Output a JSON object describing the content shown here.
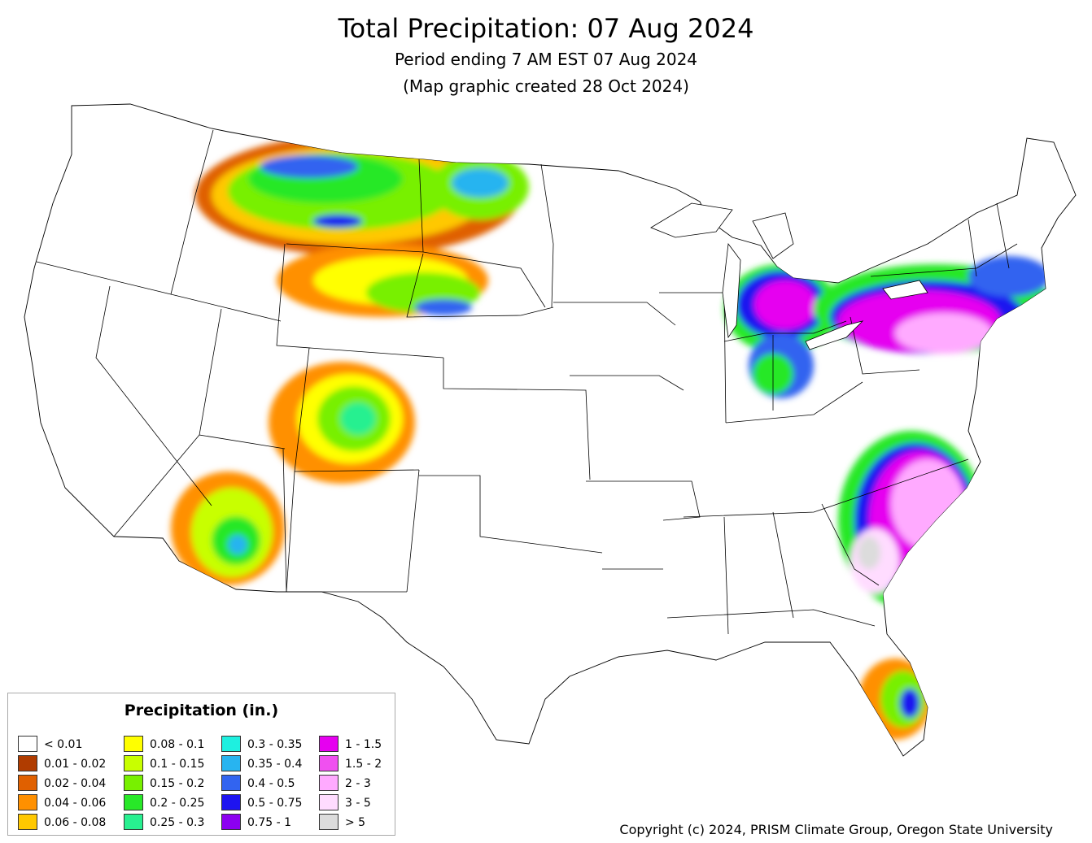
{
  "title": "Total Precipitation: 07 Aug 2024",
  "subtitle": "Period ending 7 AM EST 07 Aug 2024",
  "created": "(Map graphic created 28 Oct 2024)",
  "legend": {
    "title": "Precipitation (in.)",
    "items": [
      {
        "label": "< 0.01",
        "color": "#ffffff"
      },
      {
        "label": "0.01 - 0.02",
        "color": "#b03c00"
      },
      {
        "label": "0.02 - 0.04",
        "color": "#e06000"
      },
      {
        "label": "0.04 - 0.06",
        "color": "#ff9000"
      },
      {
        "label": "0.06 - 0.08",
        "color": "#ffc800"
      },
      {
        "label": "0.08 - 0.1",
        "color": "#ffff00"
      },
      {
        "label": "0.1 - 0.15",
        "color": "#c8ff00"
      },
      {
        "label": "0.15 - 0.2",
        "color": "#78f000"
      },
      {
        "label": "0.2 - 0.25",
        "color": "#28e828"
      },
      {
        "label": "0.25 - 0.3",
        "color": "#28f090"
      },
      {
        "label": "0.3 - 0.35",
        "color": "#1ef0e0"
      },
      {
        "label": "0.35 - 0.4",
        "color": "#28b4f0"
      },
      {
        "label": "0.4 - 0.5",
        "color": "#3264f0"
      },
      {
        "label": "0.5 - 0.75",
        "color": "#1e14f0"
      },
      {
        "label": "0.75 - 1",
        "color": "#8c00f0"
      },
      {
        "label": "1 - 1.5",
        "color": "#e600f0"
      },
      {
        "label": "1.5 - 2",
        "color": "#f050f0"
      },
      {
        "label": "2 - 3",
        "color": "#ffaaff"
      },
      {
        "label": "3 - 5",
        "color": "#ffdcff"
      },
      {
        "label": "> 5",
        "color": "#dcdcdc"
      }
    ]
  },
  "copyright": "Copyright (c) 2024, PRISM Climate Group, Oregon State University"
}
